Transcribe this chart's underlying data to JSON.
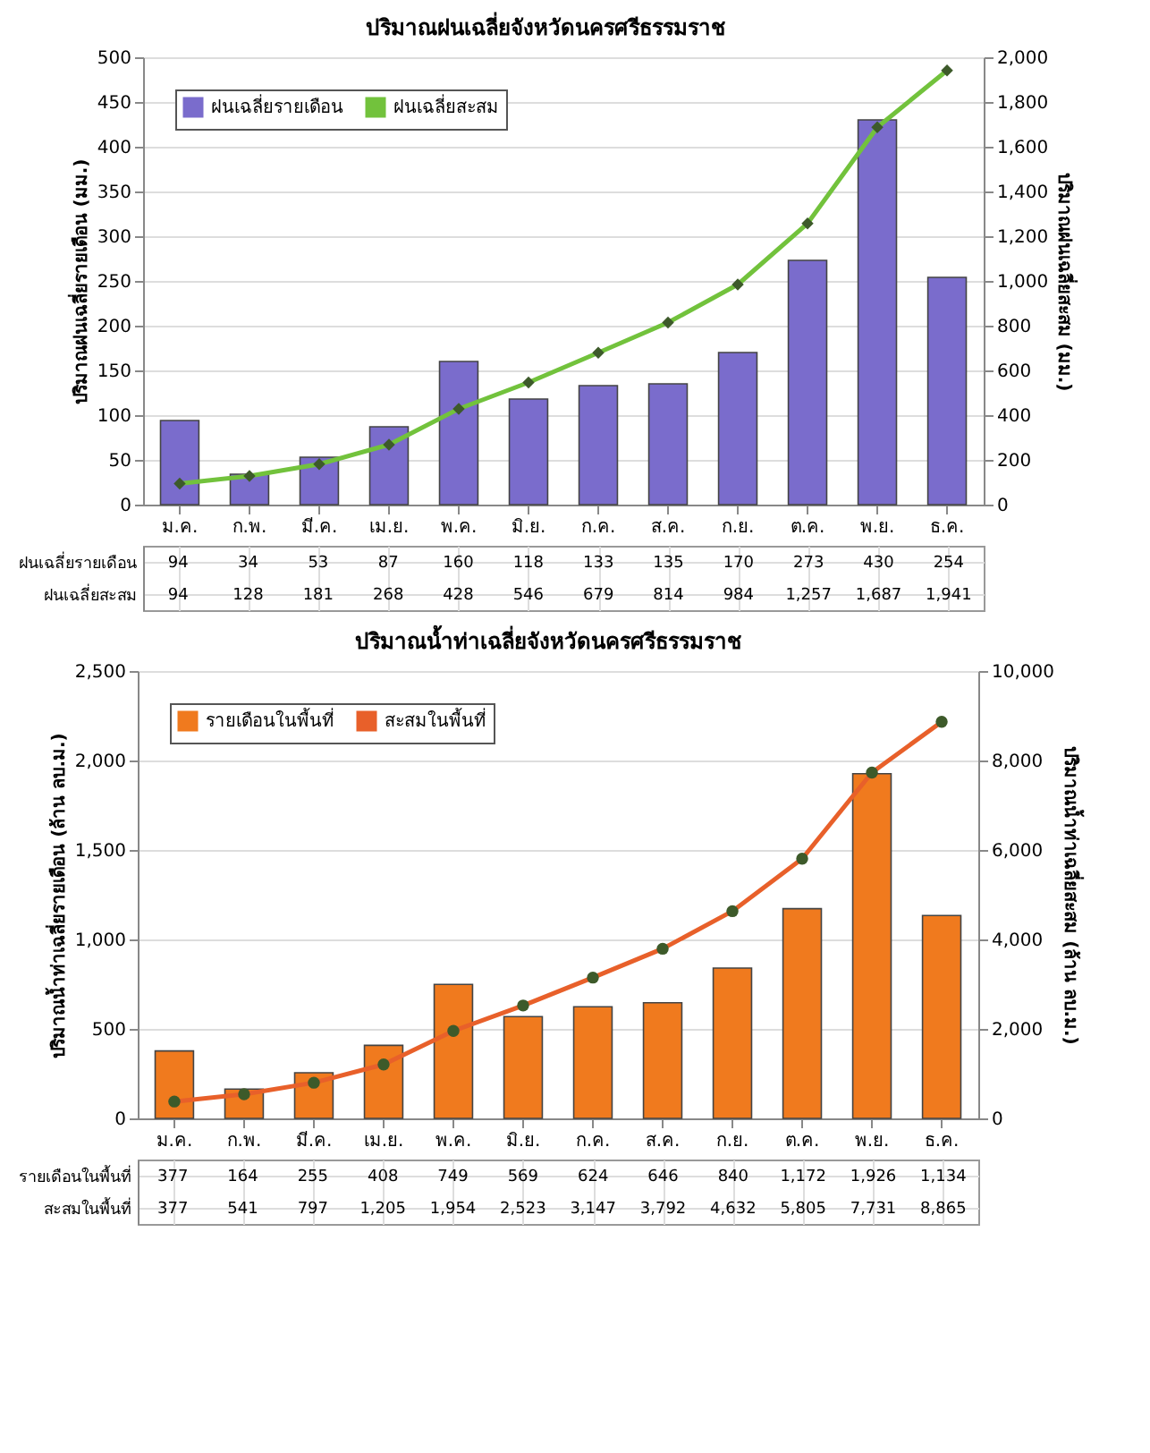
{
  "chart_data": [
    {
      "type": "bar",
      "title": "ปริมาณฝนเฉลี่ยจังหวัดนครศรีธรรมราช",
      "ylabel": "ปริมาณฝนเฉลี่ยรายเดือน (มม.)",
      "y2label": "ปริมาณฝนเฉลี่ยสะสม (มม.)",
      "categories": [
        "ม.ค.",
        "ก.พ.",
        "มี.ค.",
        "เม.ย.",
        "พ.ค.",
        "มิ.ย.",
        "ก.ค.",
        "ส.ค.",
        "ก.ย.",
        "ต.ค.",
        "พ.ย.",
        "ธ.ค."
      ],
      "series": [
        {
          "name": "ฝนเฉลี่ยรายเดือน",
          "color": "#7a6ccc",
          "values": [
            94,
            34,
            53,
            87,
            160,
            118,
            133,
            135,
            170,
            273,
            430,
            254
          ],
          "value_labels": [
            "94",
            "34",
            "53",
            "87",
            "160",
            "118",
            "133",
            "135",
            "170",
            "273",
            "430",
            "254"
          ]
        },
        {
          "name": "ฝนเฉลี่ยสะสม",
          "type": "line",
          "axis": "y2",
          "color": "#72c23c",
          "values": [
            94,
            128,
            181,
            268,
            428,
            546,
            679,
            814,
            984,
            1257,
            1687,
            1941
          ],
          "value_labels": [
            "94",
            "128",
            "181",
            "268",
            "428",
            "546",
            "679",
            "814",
            "984",
            "1,257",
            "1,687",
            "1,941"
          ]
        }
      ],
      "ylim": [
        0,
        500
      ],
      "yticks": [
        0,
        50,
        100,
        150,
        200,
        250,
        300,
        350,
        400,
        450,
        500
      ],
      "y2lim": [
        0,
        2000
      ],
      "y2ticks": [
        0,
        200,
        400,
        600,
        800,
        {
          "value": 1000,
          "label": "1,000"
        },
        {
          "value": 1200,
          "label": "1,200"
        },
        {
          "value": 1400,
          "label": "1,400"
        },
        {
          "value": 1600,
          "label": "1,600"
        },
        {
          "value": 1800,
          "label": "1,800"
        },
        {
          "value": 2000,
          "label": "2,000"
        }
      ],
      "grid": "y",
      "legend": "top left",
      "marker": "diamond"
    },
    {
      "type": "bar",
      "title": "ปริมาณน้ำท่าเฉลี่ยจังหวัดนครศรีธรรมราช",
      "ylabel": "ปริมาณน้ำท่าเฉลี่ยรายเดือน (ล้าน ลบ.ม.)",
      "y2label": "ปริมาณน้ำท่าเฉลี่ยสะสม (ล้าน ลบ.ม.)",
      "categories": [
        "ม.ค.",
        "ก.พ.",
        "มี.ค.",
        "เม.ย.",
        "พ.ค.",
        "มิ.ย.",
        "ก.ค.",
        "ส.ค.",
        "ก.ย.",
        "ต.ค.",
        "พ.ย.",
        "ธ.ค."
      ],
      "series": [
        {
          "name": "รายเดือนในพื้นที่",
          "color": "#f07a1e",
          "values": [
            377,
            164,
            255,
            408,
            749,
            569,
            624,
            646,
            840,
            1172,
            1926,
            1134
          ],
          "value_labels": [
            "377",
            "164",
            "255",
            "408",
            "749",
            "569",
            "624",
            "646",
            "840",
            "1,172",
            "1,926",
            "1,134"
          ]
        },
        {
          "name": "สะสมในพื้นที่",
          "type": "line",
          "axis": "y2",
          "color": "#e8602a",
          "values": [
            377,
            541,
            797,
            1205,
            1954,
            2523,
            3147,
            3792,
            4632,
            5805,
            7731,
            8865
          ],
          "value_labels": [
            "377",
            "541",
            "797",
            "1,205",
            "1,954",
            "2,523",
            "3,147",
            "3,792",
            "4,632",
            "5,805",
            "7,731",
            "8,865"
          ]
        }
      ],
      "ylim": [
        0,
        2500
      ],
      "yticks": [
        0,
        500,
        {
          "value": 1000,
          "label": "1,000"
        },
        {
          "value": 1500,
          "label": "1,500"
        },
        {
          "value": 2000,
          "label": "2,000"
        },
        {
          "value": 2500,
          "label": "2,500"
        }
      ],
      "y2lim": [
        0,
        10000
      ],
      "y2ticks": [
        0,
        {
          "value": 2000,
          "label": "2,000"
        },
        {
          "value": 4000,
          "label": "4,000"
        },
        {
          "value": 6000,
          "label": "6,000"
        },
        {
          "value": 8000,
          "label": "8,000"
        },
        {
          "value": 10000,
          "label": "10,000"
        }
      ],
      "grid": "y",
      "legend": "top left",
      "marker": "circle"
    }
  ]
}
